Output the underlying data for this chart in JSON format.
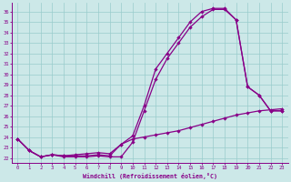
{
  "xlabel": "Windchill (Refroidissement éolien,°C)",
  "xlim": [
    -0.5,
    23.5
  ],
  "ylim": [
    21.5,
    36.8
  ],
  "xticks": [
    0,
    1,
    2,
    3,
    4,
    5,
    6,
    7,
    8,
    9,
    10,
    11,
    12,
    13,
    14,
    15,
    16,
    17,
    18,
    19,
    20,
    21,
    22,
    23
  ],
  "yticks": [
    22,
    23,
    24,
    25,
    26,
    27,
    28,
    29,
    30,
    31,
    32,
    33,
    34,
    35,
    36
  ],
  "bg_color": "#cce8e8",
  "plot_bg": "#cce8e8",
  "line_color": "#880088",
  "grid_color": "#99cccc",
  "line1_x": [
    0,
    1,
    2,
    3,
    4,
    5,
    6,
    7,
    8,
    9,
    10,
    11,
    12,
    13,
    14,
    15,
    16,
    17,
    18,
    19,
    20,
    21,
    22,
    23
  ],
  "line1_y": [
    23.8,
    22.7,
    22.1,
    22.3,
    22.1,
    22.1,
    22.1,
    22.2,
    22.1,
    22.1,
    23.5,
    26.5,
    29.5,
    31.5,
    33.0,
    34.5,
    35.5,
    36.2,
    36.2,
    35.2,
    28.8,
    28.0,
    26.5,
    26.5
  ],
  "line2_x": [
    0,
    1,
    2,
    3,
    4,
    5,
    6,
    7,
    8,
    9,
    10,
    11,
    12,
    13,
    14,
    15,
    16,
    17,
    18,
    19,
    20,
    21,
    22,
    23
  ],
  "line2_y": [
    23.8,
    22.7,
    22.1,
    22.3,
    22.2,
    22.2,
    22.2,
    22.3,
    22.2,
    23.3,
    24.1,
    27.0,
    30.5,
    32.0,
    33.5,
    35.0,
    36.0,
    36.3,
    36.3,
    35.2,
    28.8,
    28.0,
    26.5,
    26.5
  ],
  "line3_x": [
    0,
    1,
    2,
    3,
    4,
    5,
    6,
    7,
    8,
    9,
    10,
    11,
    12,
    13,
    14,
    15,
    16,
    17,
    18,
    19,
    20,
    21,
    22,
    23
  ],
  "line3_y": [
    23.8,
    22.7,
    22.1,
    22.3,
    22.2,
    22.3,
    22.4,
    22.5,
    22.4,
    23.3,
    23.8,
    24.0,
    24.2,
    24.4,
    24.6,
    24.9,
    25.2,
    25.5,
    25.8,
    26.1,
    26.3,
    26.5,
    26.6,
    26.7
  ]
}
